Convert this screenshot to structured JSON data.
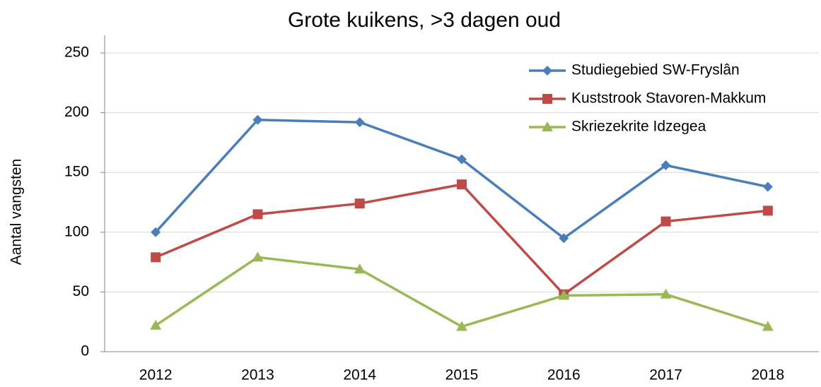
{
  "chart_data": {
    "type": "line",
    "title": "Grote kuikens, >3 dagen oud",
    "y_label": "Aantal vangsten",
    "categories": [
      "2012",
      "2013",
      "2014",
      "2015",
      "2016",
      "2017",
      "2018"
    ],
    "series": [
      {
        "name": "Studiegebied SW-Fryslân",
        "color": "#4a7ebb",
        "marker": "diamond",
        "values": [
          100,
          194,
          192,
          161,
          95,
          156,
          138
        ]
      },
      {
        "name": "Kuststrook Stavoren-Makkum",
        "color": "#be4b48",
        "marker": "square",
        "values": [
          79,
          115,
          124,
          140,
          48,
          109,
          118
        ]
      },
      {
        "name": "Skriezekrite Idzegea",
        "color": "#98b954",
        "marker": "triangle",
        "values": [
          22,
          79,
          69,
          21,
          47,
          48,
          21
        ]
      }
    ],
    "ylim": [
      0,
      250
    ],
    "yticks": [
      0,
      50,
      100,
      150,
      200,
      250
    ],
    "grid": true,
    "legend": "upper right"
  }
}
